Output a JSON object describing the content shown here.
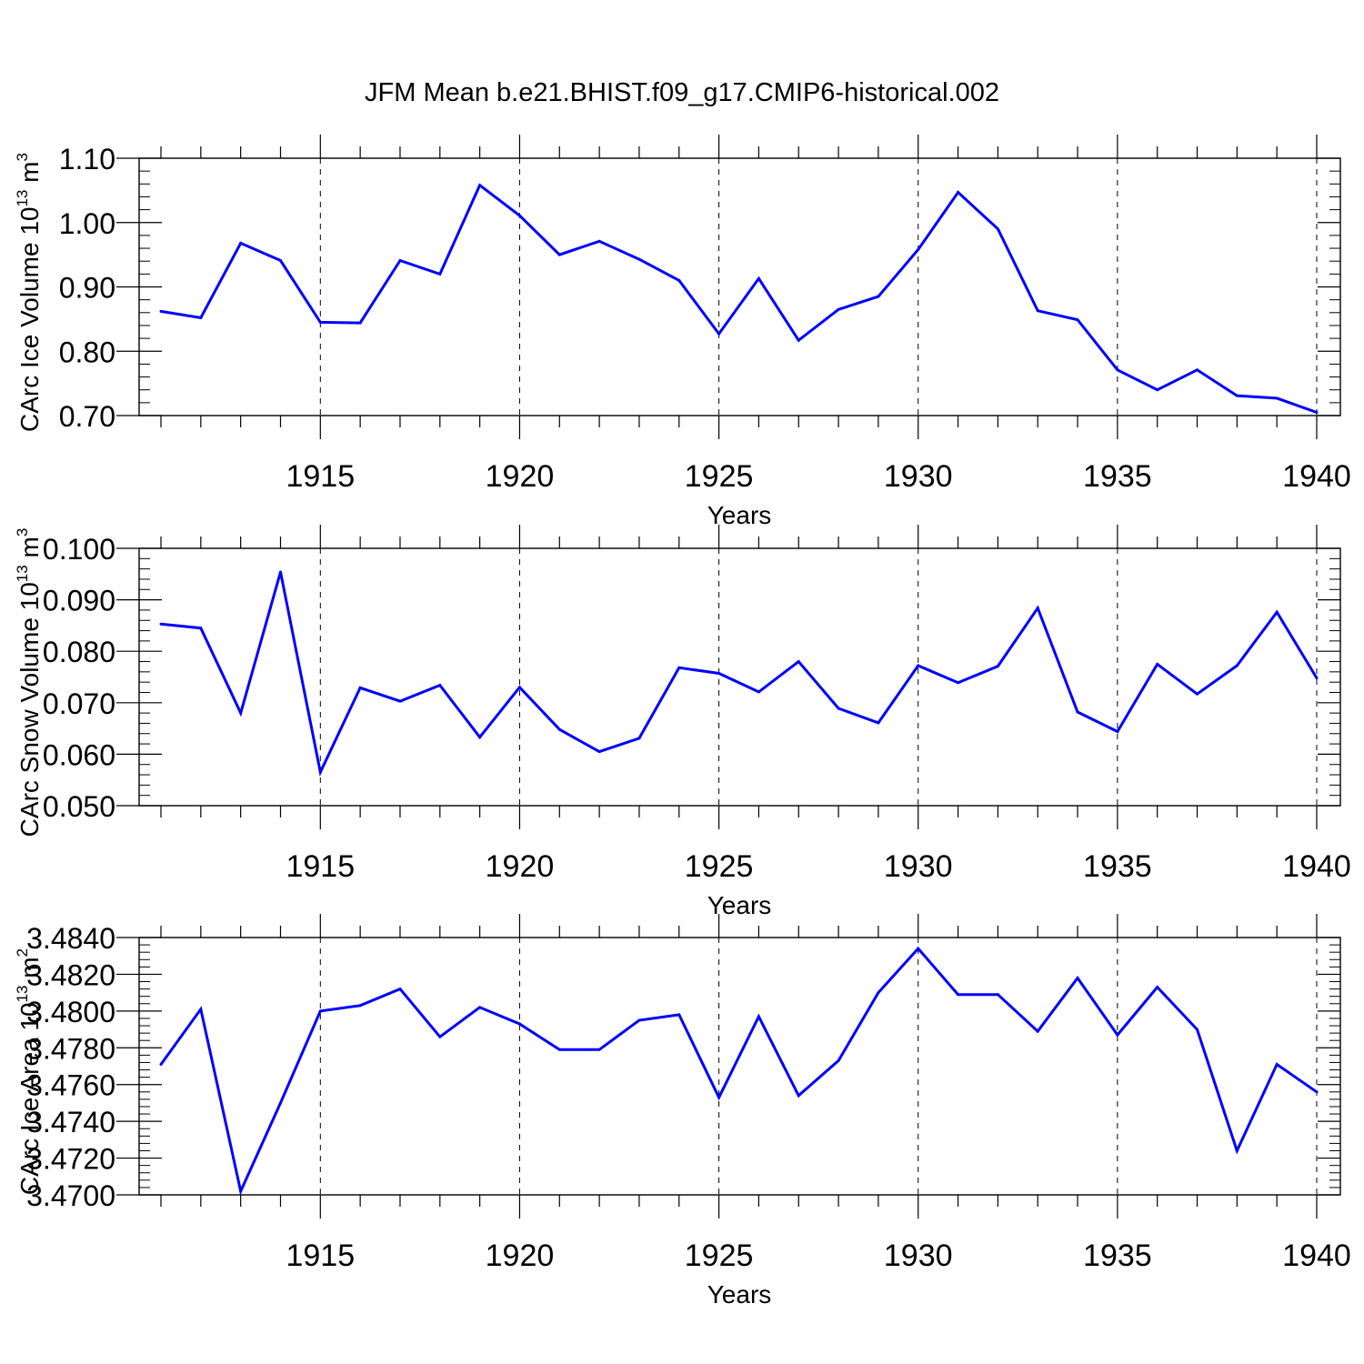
{
  "title": "JFM Mean b.e21.BHIST.f09_g17.CMIP6-historical.002",
  "line_color": "#0000ff",
  "chart_data": [
    {
      "type": "line",
      "ylabel": "CArc Ice Volume 10",
      "ylabel_sup": "13",
      "ylabel_unit": "m",
      "ylabel_unit_sup": "3",
      "xlabel": "Years",
      "xlim": [
        1911,
        1940
      ],
      "ylim": [
        0.7,
        1.1
      ],
      "xticks": [
        1915,
        1920,
        1925,
        1930,
        1935,
        1940
      ],
      "yticks": [
        "0.70",
        "0.80",
        "0.90",
        "1.00",
        "1.10"
      ],
      "ytick_values": [
        0.7,
        0.8,
        0.9,
        1.0,
        1.1
      ],
      "vertical_dashed_grid": true,
      "x": [
        1911,
        1912,
        1913,
        1914,
        1915,
        1916,
        1917,
        1918,
        1919,
        1920,
        1921,
        1922,
        1923,
        1924,
        1925,
        1926,
        1927,
        1928,
        1929,
        1930,
        1931,
        1932,
        1933,
        1934,
        1935,
        1936,
        1937,
        1938,
        1939,
        1940
      ],
      "values": [
        0.862,
        0.852,
        0.968,
        0.941,
        0.845,
        0.844,
        0.941,
        0.92,
        1.058,
        1.011,
        0.95,
        0.971,
        0.943,
        0.91,
        0.827,
        0.913,
        0.817,
        0.865,
        0.885,
        0.958,
        1.047,
        0.99,
        0.863,
        0.849,
        0.771,
        0.74,
        0.771,
        0.731,
        0.727,
        0.705
      ]
    },
    {
      "type": "line",
      "ylabel": "CArc Snow Volume 10",
      "ylabel_sup": "13",
      "ylabel_unit": "m",
      "ylabel_unit_sup": "3",
      "xlabel": "Years",
      "xlim": [
        1911,
        1940
      ],
      "ylim": [
        0.05,
        0.1
      ],
      "xticks": [
        1915,
        1920,
        1925,
        1930,
        1935,
        1940
      ],
      "yticks": [
        "0.050",
        "0.060",
        "0.070",
        "0.080",
        "0.090",
        "0.100"
      ],
      "ytick_values": [
        0.05,
        0.06,
        0.07,
        0.08,
        0.09,
        0.1
      ],
      "vertical_dashed_grid": true,
      "x": [
        1911,
        1912,
        1913,
        1914,
        1915,
        1916,
        1917,
        1918,
        1919,
        1920,
        1921,
        1922,
        1923,
        1924,
        1925,
        1926,
        1927,
        1928,
        1929,
        1930,
        1931,
        1932,
        1933,
        1934,
        1935,
        1936,
        1937,
        1938,
        1939,
        1940
      ],
      "values": [
        0.0853,
        0.0845,
        0.068,
        0.0954,
        0.0565,
        0.0729,
        0.0703,
        0.0734,
        0.0633,
        0.073,
        0.0648,
        0.0605,
        0.0631,
        0.0768,
        0.0757,
        0.0721,
        0.078,
        0.0689,
        0.0661,
        0.0772,
        0.0739,
        0.0771,
        0.0884,
        0.0682,
        0.0644,
        0.0775,
        0.0717,
        0.0772,
        0.0876,
        0.0748
      ]
    },
    {
      "type": "line",
      "ylabel": "CArc Ice Area 10",
      "ylabel_sup": "13",
      "ylabel_unit": "m",
      "ylabel_unit_sup": "2",
      "xlabel": "Years",
      "xlim": [
        1911,
        1940
      ],
      "ylim": [
        3.47,
        3.484
      ],
      "xticks": [
        1915,
        1920,
        1925,
        1930,
        1935,
        1940
      ],
      "yticks": [
        "3.4700",
        "3.4720",
        "3.4740",
        "3.4760",
        "3.4780",
        "3.4800",
        "3.4820",
        "3.4840"
      ],
      "ytick_values": [
        3.47,
        3.472,
        3.474,
        3.476,
        3.478,
        3.48,
        3.482,
        3.484
      ],
      "vertical_dashed_grid": true,
      "x": [
        1911,
        1912,
        1913,
        1914,
        1915,
        1916,
        1917,
        1918,
        1919,
        1920,
        1921,
        1922,
        1923,
        1924,
        1925,
        1926,
        1927,
        1928,
        1929,
        1930,
        1931,
        1932,
        1933,
        1934,
        1935,
        1936,
        1937,
        1938,
        1939,
        1940
      ],
      "values": [
        3.4771,
        3.4801,
        3.4702,
        3.475,
        3.48,
        3.4803,
        3.4812,
        3.4786,
        3.4802,
        3.4793,
        3.4779,
        3.4779,
        3.4795,
        3.4798,
        3.4753,
        3.4797,
        3.4754,
        3.4773,
        3.481,
        3.4834,
        3.4809,
        3.4809,
        3.4789,
        3.4818,
        3.4787,
        3.4813,
        3.479,
        3.4724,
        3.4771,
        3.4756
      ]
    }
  ]
}
